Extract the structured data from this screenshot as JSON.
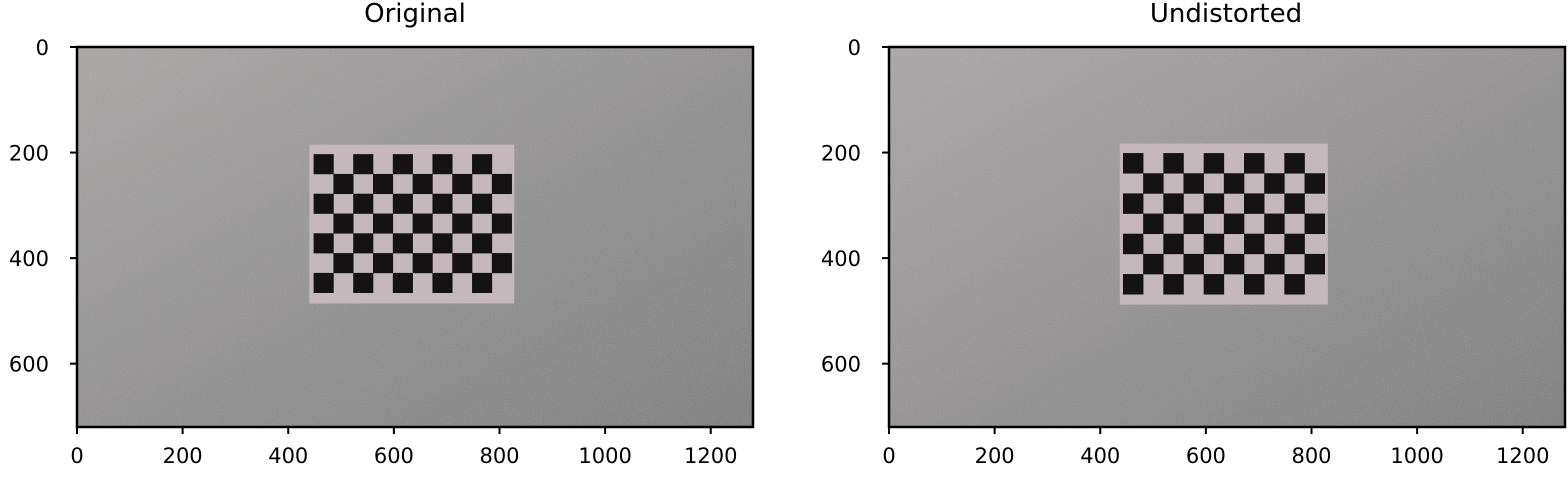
{
  "chart_data": [
    {
      "type": "image",
      "title": "Original",
      "image_description": "chessboard calibration target on a grey wall",
      "image_size": [
        1280,
        720
      ],
      "xlim": [
        0,
        1280
      ],
      "ylim": [
        720,
        0
      ],
      "xticks": [
        0,
        200,
        400,
        600,
        800,
        1000,
        1200
      ],
      "yticks": [
        0,
        200,
        400,
        600
      ],
      "board": {
        "x0": 440,
        "y0": 185,
        "x1": 828,
        "y1": 486,
        "cols": 10,
        "rows": 7,
        "sq0x": 448,
        "sq0y": 203,
        "sq": 37.5
      },
      "colors": {
        "background_light": "#a9a6a6",
        "background_dark": "#7e7e7e",
        "paper": "#c5b8bc",
        "squares": "#151214"
      }
    },
    {
      "type": "image",
      "title": "Undistorted",
      "image_description": "undistorted chessboard calibration target on a grey wall",
      "image_size": [
        1280,
        720
      ],
      "xlim": [
        0,
        1280
      ],
      "ylim": [
        720,
        0
      ],
      "xticks": [
        0,
        200,
        400,
        600,
        800,
        1000,
        1200
      ],
      "yticks": [
        0,
        200,
        400,
        600
      ],
      "board": {
        "x0": 437,
        "y0": 183,
        "x1": 831,
        "y1": 488,
        "cols": 10,
        "rows": 7,
        "sq0x": 443,
        "sq0y": 201,
        "sq": 38.2
      },
      "colors": {
        "background_light": "#aba7a8",
        "background_dark": "#7e7e7e",
        "paper": "#c5b8bc",
        "squares": "#151214"
      }
    }
  ]
}
